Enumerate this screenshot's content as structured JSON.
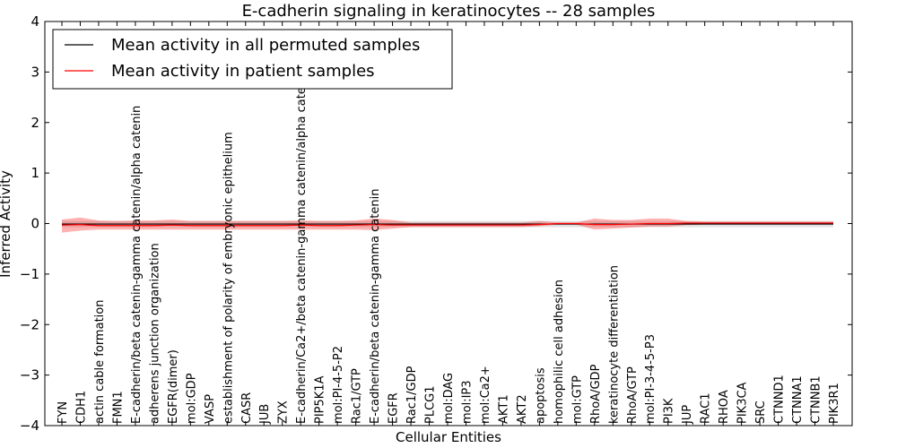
{
  "chart_data": {
    "type": "line",
    "title": "E-cadherin signaling in keratinocytes -- 28 samples",
    "xlabel": "Cellular Entities",
    "ylabel": "Inferred Activity",
    "ylim": [
      -4,
      4
    ],
    "yticks": [
      4,
      3,
      2,
      1,
      0,
      -1,
      -2,
      -3,
      -4
    ],
    "ytick_labels": [
      "4",
      "3",
      "2",
      "1",
      "0",
      "−1",
      "−2",
      "−3",
      "−4"
    ],
    "grid": false,
    "legend": {
      "position": "top-left",
      "entries": [
        {
          "label": "Mean activity in all permuted samples",
          "color": "#000000"
        },
        {
          "label": "Mean activity in patient samples",
          "color": "#ff0000"
        }
      ]
    },
    "categories": [
      "FYN",
      "CDH1",
      "actin cable formation",
      "FMN1",
      "E-cadherin/beta catenin-gamma catenin/alpha catenin",
      "adherens junction organization",
      "EGFR(dimer)",
      "mol:GDP",
      "VASP",
      "establishment of polarity of embryonic epithelium",
      "CASR",
      "JUB",
      "ZYX",
      "E-cadherin/Ca2+/beta catenin-gamma catenin/alpha catenin",
      "PIP5K1A",
      "mol:PI-4-5-P2",
      "Rac1/GTP",
      "E-cadherin/beta catenin-gamma catenin",
      "EGFR",
      "Rac1/GDP",
      "PLCG1",
      "mol:DAG",
      "mol:IP3",
      "mol:Ca2+",
      "AKT1",
      "AKT2",
      "apoptosis",
      "homophilic cell adhesion",
      "mol:GTP",
      "RhoA/GDP",
      "keratinocyte differentiation",
      "RhoA/GTP",
      "mol:PI-3-4-5-P3",
      "PI3K",
      "JUP",
      "RAC1",
      "RHOA",
      "PIK3CA",
      "SRC",
      "CTNND1",
      "CTNNA1",
      "CTNNB1",
      "PIK3R1"
    ],
    "series": [
      {
        "name": "Mean activity in all permuted samples",
        "color": "#000000",
        "values": [
          -0.01,
          -0.01,
          -0.01,
          -0.01,
          -0.01,
          -0.01,
          -0.01,
          -0.01,
          -0.01,
          -0.01,
          -0.01,
          -0.01,
          -0.01,
          -0.01,
          -0.01,
          -0.01,
          -0.01,
          -0.01,
          -0.01,
          -0.01,
          -0.01,
          -0.01,
          -0.01,
          -0.01,
          -0.01,
          -0.01,
          -0.01,
          -0.01,
          -0.01,
          -0.01,
          -0.01,
          -0.01,
          -0.01,
          -0.01,
          -0.01,
          -0.01,
          -0.01,
          -0.01,
          -0.01,
          -0.01,
          -0.01,
          -0.01,
          -0.01
        ],
        "band_lower": [
          -0.07,
          -0.07,
          -0.07,
          -0.07,
          -0.07,
          -0.07,
          -0.07,
          -0.07,
          -0.07,
          -0.07,
          -0.07,
          -0.07,
          -0.07,
          -0.07,
          -0.07,
          -0.07,
          -0.07,
          -0.07,
          -0.07,
          -0.07,
          -0.07,
          -0.07,
          -0.07,
          -0.07,
          -0.07,
          -0.07,
          -0.07,
          -0.07,
          -0.07,
          -0.07,
          -0.07,
          -0.07,
          -0.07,
          -0.07,
          -0.07,
          -0.07,
          -0.07,
          -0.07,
          -0.07,
          -0.07,
          -0.07,
          -0.07,
          -0.07
        ],
        "band_upper": [
          0.05,
          0.05,
          0.05,
          0.05,
          0.05,
          0.05,
          0.05,
          0.05,
          0.05,
          0.05,
          0.05,
          0.05,
          0.05,
          0.05,
          0.05,
          0.05,
          0.05,
          0.05,
          0.05,
          0.05,
          0.05,
          0.05,
          0.05,
          0.05,
          0.05,
          0.05,
          0.05,
          0.05,
          0.05,
          0.05,
          0.05,
          0.05,
          0.05,
          0.05,
          0.05,
          0.05,
          0.05,
          0.05,
          0.05,
          0.05,
          0.05,
          0.05,
          0.05
        ]
      },
      {
        "name": "Mean activity in patient samples",
        "color": "#ff0000",
        "values": [
          -0.03,
          -0.02,
          -0.04,
          -0.04,
          -0.04,
          -0.04,
          -0.03,
          -0.04,
          -0.04,
          -0.04,
          -0.04,
          -0.04,
          -0.04,
          -0.03,
          -0.04,
          -0.04,
          -0.03,
          -0.02,
          -0.03,
          -0.03,
          -0.03,
          -0.03,
          -0.03,
          -0.03,
          -0.03,
          -0.03,
          -0.02,
          0.0,
          0.0,
          -0.02,
          -0.02,
          -0.01,
          0.0,
          0.0,
          0.01,
          0.01,
          0.01,
          0.01,
          0.01,
          0.01,
          0.01,
          0.01,
          0.01
        ],
        "band_lower": [
          -0.18,
          -0.14,
          -0.12,
          -0.12,
          -0.12,
          -0.12,
          -0.12,
          -0.12,
          -0.12,
          -0.12,
          -0.12,
          -0.12,
          -0.12,
          -0.12,
          -0.12,
          -0.12,
          -0.12,
          -0.13,
          -0.1,
          -0.07,
          -0.07,
          -0.07,
          -0.07,
          -0.07,
          -0.07,
          -0.07,
          -0.05,
          -0.02,
          -0.02,
          -0.12,
          -0.1,
          -0.08,
          -0.06,
          -0.06,
          -0.03,
          -0.02,
          -0.02,
          -0.02,
          -0.02,
          -0.02,
          -0.02,
          -0.02,
          -0.02
        ],
        "band_upper": [
          0.08,
          0.12,
          0.06,
          0.05,
          0.06,
          0.06,
          0.08,
          0.05,
          0.05,
          0.05,
          0.05,
          0.05,
          0.05,
          0.06,
          0.05,
          0.05,
          0.06,
          0.1,
          0.07,
          0.02,
          0.02,
          0.02,
          0.02,
          0.02,
          0.02,
          0.02,
          0.05,
          0.02,
          0.02,
          0.1,
          0.07,
          0.07,
          0.1,
          0.1,
          0.05,
          0.04,
          0.04,
          0.04,
          0.04,
          0.04,
          0.04,
          0.04,
          0.04
        ]
      }
    ]
  }
}
